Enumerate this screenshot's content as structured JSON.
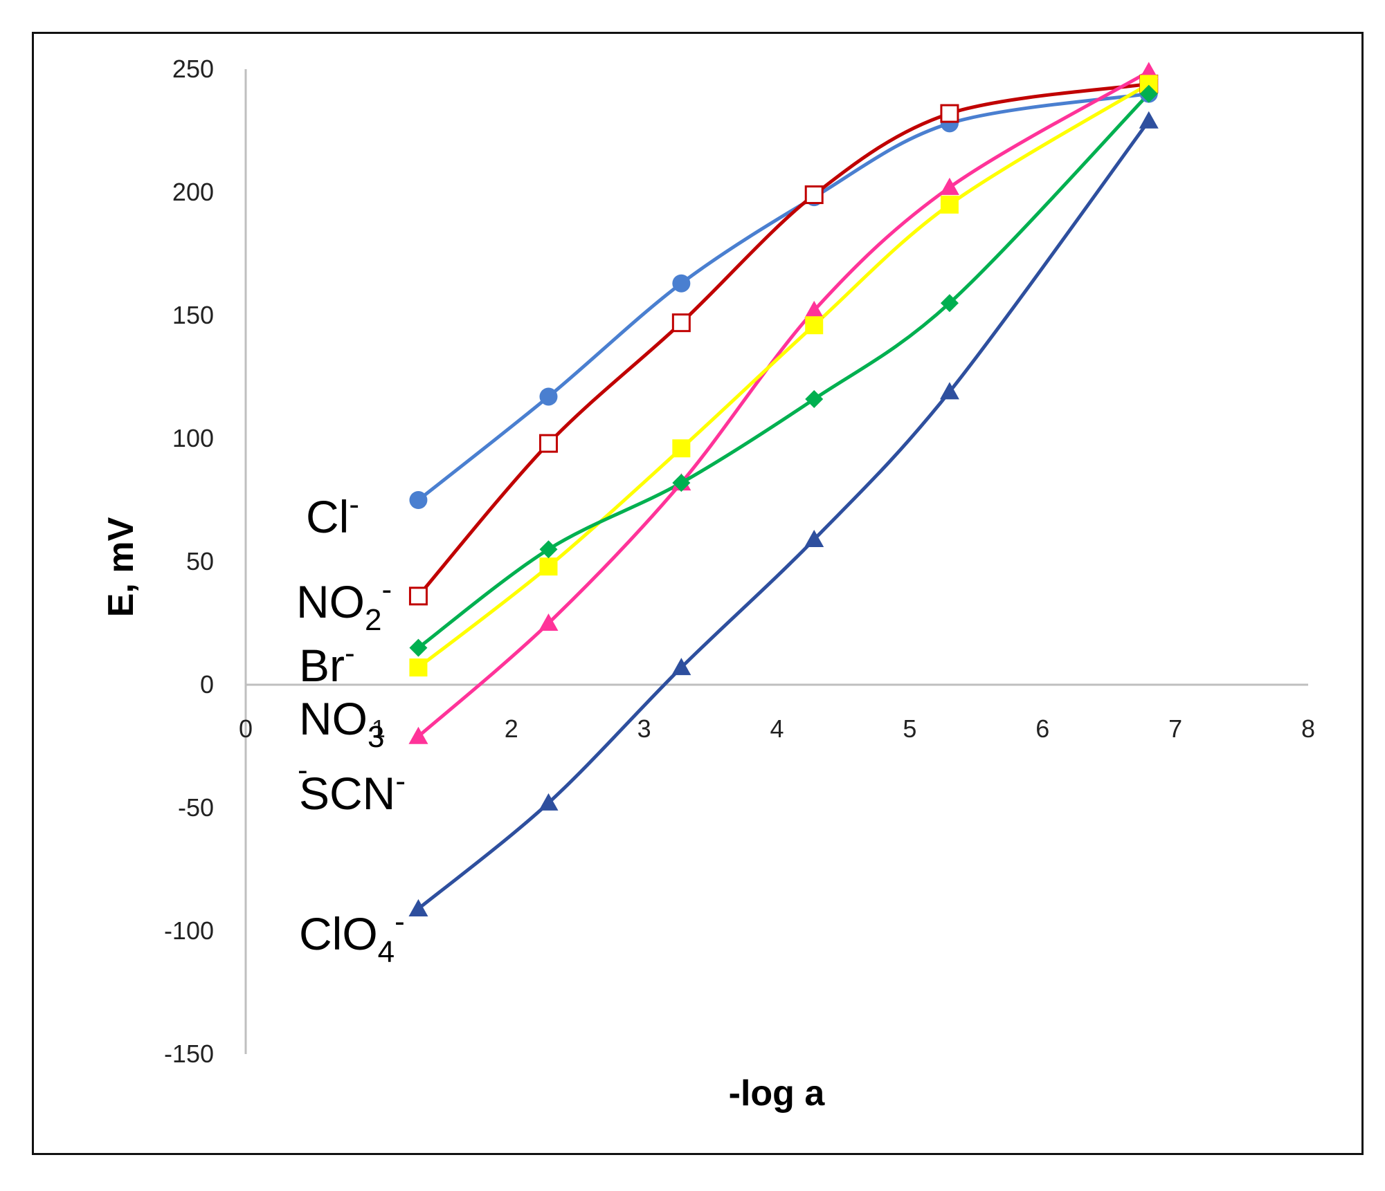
{
  "chart_data": {
    "type": "line",
    "title": "",
    "xlabel": "-log a",
    "ylabel": "E, mV",
    "xlim": [
      0,
      8
    ],
    "ylim": [
      -150,
      250
    ],
    "xticks": [
      "0",
      "1",
      "2",
      "3",
      "4",
      "5",
      "6",
      "7",
      "8"
    ],
    "yticks": [
      "-150",
      "-100",
      "-50",
      "0",
      "50",
      "100",
      "150",
      "200",
      "250"
    ],
    "x": [
      1.3,
      2.28,
      3.28,
      4.28,
      5.3,
      6.8
    ],
    "series": [
      {
        "name": "Cl-",
        "label_main": "Cl",
        "label_sup": "-",
        "color": "#4a7fd0",
        "marker": "circle",
        "values": [
          75,
          117,
          163,
          198,
          228,
          240
        ]
      },
      {
        "name": "NO2-",
        "label_main": "NO",
        "label_sub": "2",
        "label_sup": "-",
        "color": "#c00000",
        "marker": "square-open",
        "values": [
          36,
          98,
          147,
          199,
          232,
          244
        ]
      },
      {
        "name": "Br-",
        "label_main": "Br",
        "label_sup": "-",
        "color": "#00b050",
        "marker": "diamond",
        "values": [
          15,
          55,
          82,
          116,
          155,
          240
        ]
      },
      {
        "name": "NO3-",
        "label_main": "NO",
        "label_sub": "3",
        "label_sup": "-",
        "color": "#ffff00",
        "marker": "square",
        "values": [
          7,
          48,
          96,
          146,
          195,
          244
        ]
      },
      {
        "name": "SCN-",
        "label_main": "SCN",
        "label_sup": "-",
        "color": "#ff3399",
        "marker": "triangle",
        "values": [
          -21,
          25,
          82,
          152,
          202,
          249
        ]
      },
      {
        "name": "ClO4-",
        "label_main": "ClO",
        "label_sub": "4",
        "label_sup": "-",
        "color": "#2e4f9e",
        "marker": "triangle",
        "values": [
          -91,
          -48,
          7,
          59,
          119,
          229
        ]
      }
    ]
  }
}
